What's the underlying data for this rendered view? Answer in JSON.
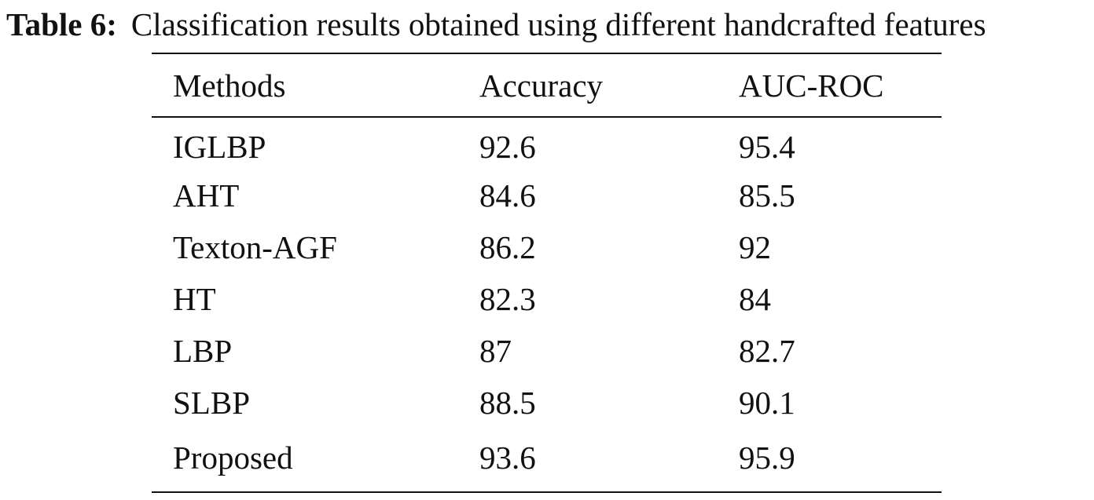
{
  "caption": {
    "label": "Table 6:",
    "text": "Classification results obtained using different handcrafted features"
  },
  "table": {
    "headers": [
      "Methods",
      "Accuracy",
      "AUC-ROC"
    ],
    "rows": [
      [
        "IGLBP",
        "92.6",
        "95.4"
      ],
      [
        "AHT",
        "84.6",
        "85.5"
      ],
      [
        "Texton-AGF",
        "86.2",
        "92"
      ],
      [
        "HT",
        "82.3",
        "84"
      ],
      [
        "LBP",
        "87",
        "82.7"
      ],
      [
        "SLBP",
        "88.5",
        "90.1"
      ],
      [
        "Proposed",
        "93.6",
        "95.9"
      ]
    ]
  }
}
